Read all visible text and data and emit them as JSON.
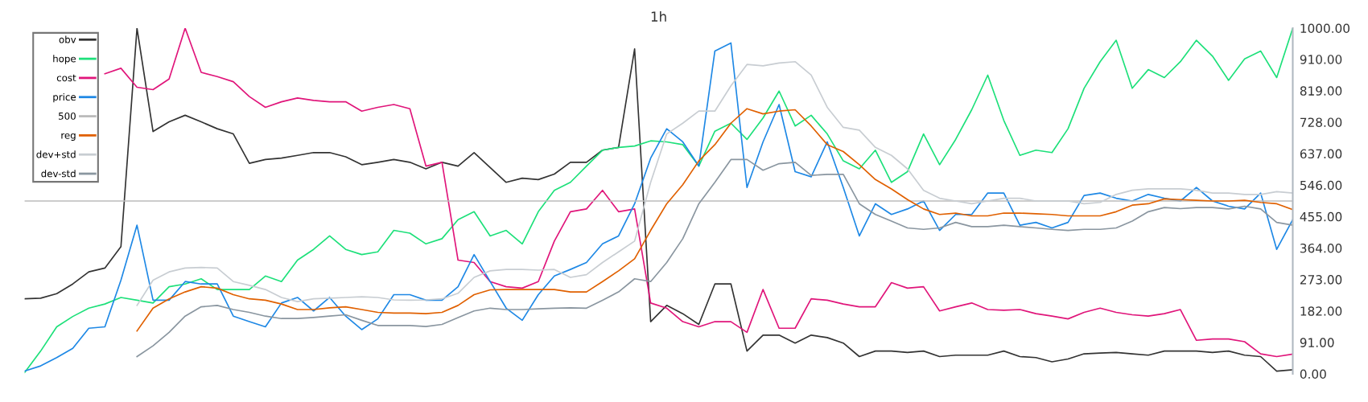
{
  "chart_data": {
    "type": "line",
    "title": "1h",
    "categories": [
      null,
      null,
      null,
      null,
      null,
      null,
      null,
      null,
      null,
      null,
      null,
      null,
      null,
      null,
      null,
      null,
      null,
      null,
      null,
      null,
      null,
      null,
      null,
      null,
      null,
      null,
      null,
      null,
      null,
      null,
      null,
      null,
      null,
      null,
      null,
      null,
      null,
      null,
      null,
      null,
      null,
      null,
      null,
      null,
      null,
      null,
      null,
      null,
      null,
      null,
      null,
      null,
      null,
      null,
      null,
      null,
      null,
      null,
      null,
      null,
      null,
      null,
      null,
      null,
      null,
      null,
      null,
      null,
      null,
      null,
      null,
      null,
      null,
      null,
      null,
      null,
      null,
      null,
      null,
      null
    ],
    "ylim": [
      0,
      1000
    ],
    "yticks": [
      {
        "value": 0,
        "label": "0.00"
      },
      {
        "value": 91,
        "label": "91.00"
      },
      {
        "value": 182,
        "label": "182.00"
      },
      {
        "value": 273,
        "label": "273.00"
      },
      {
        "value": 364,
        "label": "364.00"
      },
      {
        "value": 455,
        "label": "455.00"
      },
      {
        "value": 546,
        "label": "546.00"
      },
      {
        "value": 637,
        "label": "637.00"
      },
      {
        "value": 728,
        "label": "728.00"
      },
      {
        "value": 819,
        "label": "819.00"
      },
      {
        "value": 910,
        "label": "910.00"
      },
      {
        "value": 1000,
        "label": "1000.00"
      }
    ],
    "grid": false,
    "legend": "top left",
    "marker": "none",
    "line_style": "solid",
    "series": [
      {
        "name": "obv",
        "color": "#333333",
        "values": [
          217,
          219,
          232,
          260,
          295,
          306,
          368,
          1000,
          701,
          729,
          748,
          729,
          709,
          694,
          609,
          620,
          624,
          632,
          640,
          640,
          628,
          605,
          612,
          620,
          612,
          593,
          612,
          601,
          640,
          597,
          554,
          566,
          562,
          578,
          612,
          612,
          647,
          655,
          940,
          151,
          198,
          174,
          143,
          260,
          260,
          66,
          112,
          112,
          89,
          112,
          105,
          89,
          50,
          66,
          66,
          62,
          66,
          50,
          54,
          54,
          54,
          66,
          50,
          47,
          35,
          43,
          58,
          60,
          62,
          58,
          54,
          66,
          66,
          66,
          62,
          66,
          54,
          50,
          8,
          12
        ]
      },
      {
        "name": "hope",
        "color": "#1de07a",
        "values": [
          4,
          66,
          136,
          166,
          190,
          202,
          221,
          213,
          205,
          252,
          260,
          275,
          244,
          244,
          244,
          283,
          267,
          329,
          360,
          399,
          360,
          345,
          353,
          415,
          407,
          376,
          391,
          446,
          469,
          399,
          415,
          376,
          469,
          531,
          554,
          601,
          647,
          655,
          659,
          674,
          671,
          663,
          601,
          702,
          725,
          678,
          740,
          818,
          717,
          748,
          694,
          616,
          593,
          647,
          554,
          585,
          694,
          605,
          678,
          764,
          864,
          733,
          632,
          647,
          640,
          709,
          826,
          903,
          965,
          826,
          880,
          857,
          903,
          965,
          919,
          849,
          911,
          934,
          857,
          1000
        ]
      },
      {
        "name": "cost",
        "color": "#e0157a",
        "values": [
          null,
          null,
          null,
          null,
          null,
          868,
          884,
          829,
          822,
          853,
          1000,
          872,
          860,
          845,
          802,
          771,
          787,
          798,
          791,
          787,
          787,
          760,
          771,
          779,
          767,
          601,
          612,
          329,
          322,
          267,
          252,
          248,
          267,
          384,
          469,
          477,
          531,
          469,
          477,
          205,
          190,
          151,
          136,
          151,
          151,
          120,
          244,
          132,
          132,
          217,
          213,
          202,
          194,
          194,
          264,
          248,
          252,
          182,
          194,
          205,
          186,
          184,
          186,
          174,
          167,
          159,
          178,
          190,
          178,
          171,
          167,
          174,
          186,
          97,
          101,
          101,
          93,
          58,
          50,
          57
        ]
      },
      {
        "name": "price",
        "color": "#1e88e5",
        "values": [
          8,
          23,
          47,
          74,
          132,
          136,
          271,
          430,
          213,
          213,
          267,
          260,
          260,
          167,
          151,
          136,
          205,
          221,
          182,
          221,
          167,
          128,
          159,
          229,
          229,
          213,
          213,
          252,
          345,
          267,
          190,
          155,
          229,
          283,
          302,
          322,
          376,
          399,
          492,
          624,
          709,
          671,
          601,
          934,
          957,
          539,
          671,
          779,
          585,
          570,
          671,
          539,
          399,
          492,
          461,
          477,
          500,
          415,
          461,
          461,
          523,
          523,
          430,
          438,
          422,
          438,
          516,
          523,
          508,
          500,
          519,
          508,
          500,
          539,
          500,
          485,
          477,
          523,
          360,
          446
        ]
      },
      {
        "name": "500",
        "color": "#bbbbbb",
        "values": [
          500,
          500,
          500,
          500,
          500,
          500,
          500,
          500,
          500,
          500,
          500,
          500,
          500,
          500,
          500,
          500,
          500,
          500,
          500,
          500,
          500,
          500,
          500,
          500,
          500,
          500,
          500,
          500,
          500,
          500,
          500,
          500,
          500,
          500,
          500,
          500,
          500,
          500,
          500,
          500,
          500,
          500,
          500,
          500,
          500,
          500,
          500,
          500,
          500,
          500,
          500,
          500,
          500,
          500,
          500,
          500,
          500,
          500,
          500,
          500,
          500,
          500,
          500,
          500,
          500,
          500,
          500,
          500,
          500,
          500,
          500,
          500,
          500,
          500,
          500,
          500,
          500,
          500,
          500,
          500
        ]
      },
      {
        "name": "reg",
        "color": "#e06000",
        "values": [
          null,
          null,
          null,
          null,
          null,
          null,
          null,
          124,
          190,
          217,
          237,
          252,
          248,
          229,
          217,
          213,
          202,
          186,
          186,
          191,
          194,
          186,
          178,
          176,
          176,
          174,
          178,
          198,
          229,
          243,
          244,
          244,
          244,
          244,
          237,
          237,
          267,
          298,
          333,
          415,
          492,
          547,
          616,
          663,
          725,
          767,
          752,
          760,
          764,
          717,
          663,
          643,
          605,
          562,
          535,
          504,
          477,
          461,
          465,
          457,
          457,
          465,
          465,
          463,
          461,
          457,
          457,
          457,
          469,
          488,
          492,
          506,
          504,
          502,
          500,
          500,
          502,
          496,
          492,
          475
        ]
      },
      {
        "name": "dev+std",
        "color": "#c8cdd2",
        "values": [
          null,
          null,
          null,
          null,
          null,
          null,
          null,
          198,
          271,
          295,
          306,
          308,
          306,
          267,
          256,
          244,
          221,
          209,
          217,
          219,
          221,
          223,
          221,
          214,
          213,
          214,
          217,
          233,
          279,
          298,
          302,
          302,
          300,
          302,
          279,
          287,
          322,
          353,
          384,
          554,
          694,
          725,
          760,
          760,
          833,
          895,
          891,
          899,
          903,
          864,
          771,
          713,
          705,
          655,
          632,
          593,
          531,
          508,
          500,
          492,
          500,
          508,
          508,
          500,
          500,
          500,
          492,
          496,
          519,
          531,
          535,
          535,
          535,
          531,
          523,
          523,
          519,
          519,
          527,
          523
        ]
      },
      {
        "name": "dev-std",
        "color": "#8a96a0",
        "values": [
          null,
          null,
          null,
          null,
          null,
          null,
          null,
          50,
          81,
          120,
          167,
          194,
          198,
          186,
          178,
          167,
          160,
          160,
          163,
          167,
          171,
          155,
          140,
          140,
          140,
          137,
          143,
          163,
          182,
          190,
          186,
          186,
          188,
          190,
          191,
          190,
          213,
          237,
          275,
          267,
          322,
          391,
          492,
          554,
          620,
          620,
          589,
          608,
          612,
          574,
          577,
          577,
          492,
          461,
          442,
          422,
          418,
          422,
          438,
          426,
          426,
          430,
          426,
          422,
          418,
          415,
          418,
          418,
          422,
          442,
          469,
          481,
          478,
          481,
          481,
          477,
          485,
          477,
          438,
          430
        ]
      }
    ]
  }
}
